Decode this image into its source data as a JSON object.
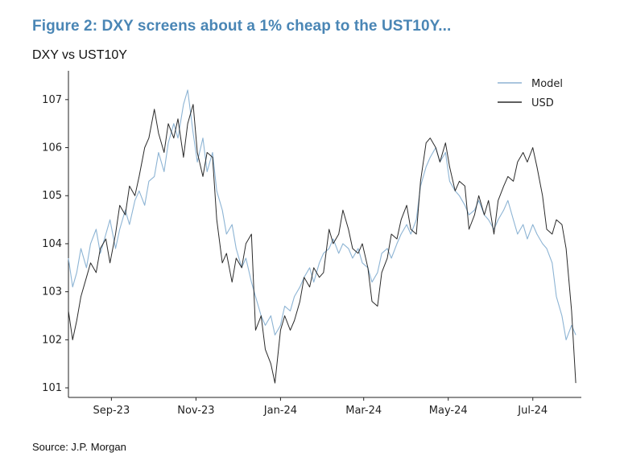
{
  "header": {
    "title": "Figure 2: DXY screens about a 1% cheap to the UST10Y...",
    "subtitle": "DXY vs UST10Y"
  },
  "footer": {
    "source": "Source: J.P. Morgan"
  },
  "colors": {
    "model": "#8db4d4",
    "usd": "#2a2a2a",
    "title": "#4a86b5"
  },
  "chart_data": {
    "type": "line",
    "title": "",
    "xlabel": "",
    "ylabel": "",
    "xlim": [
      "2023-08-01",
      "2024-08-05"
    ],
    "ylim": [
      100.8,
      107.6
    ],
    "yticks": [
      101,
      102,
      103,
      104,
      105,
      106,
      107
    ],
    "xticks": [
      {
        "date": "2023-09-01",
        "label": "Sep-23"
      },
      {
        "date": "2023-11-01",
        "label": "Nov-23"
      },
      {
        "date": "2024-01-01",
        "label": "Jan-24"
      },
      {
        "date": "2024-03-01",
        "label": "Mar-24"
      },
      {
        "date": "2024-05-01",
        "label": "May-24"
      },
      {
        "date": "2024-07-01",
        "label": "Jul-24"
      }
    ],
    "legend": "top-right",
    "grid": false,
    "series": [
      {
        "name": "Model",
        "points": [
          [
            "2023-08-01",
            103.7
          ],
          [
            "2023-08-04",
            103.1
          ],
          [
            "2023-08-07",
            103.4
          ],
          [
            "2023-08-10",
            103.9
          ],
          [
            "2023-08-14",
            103.5
          ],
          [
            "2023-08-17",
            104.0
          ],
          [
            "2023-08-21",
            104.3
          ],
          [
            "2023-08-24",
            103.8
          ],
          [
            "2023-08-28",
            104.2
          ],
          [
            "2023-08-31",
            104.5
          ],
          [
            "2023-09-04",
            103.9
          ],
          [
            "2023-09-07",
            104.3
          ],
          [
            "2023-09-11",
            104.7
          ],
          [
            "2023-09-14",
            104.4
          ],
          [
            "2023-09-18",
            104.9
          ],
          [
            "2023-09-21",
            105.1
          ],
          [
            "2023-09-25",
            104.8
          ],
          [
            "2023-09-28",
            105.3
          ],
          [
            "2023-10-02",
            105.4
          ],
          [
            "2023-10-05",
            105.9
          ],
          [
            "2023-10-09",
            105.5
          ],
          [
            "2023-10-12",
            106.1
          ],
          [
            "2023-10-16",
            106.5
          ],
          [
            "2023-10-19",
            106.2
          ],
          [
            "2023-10-23",
            106.9
          ],
          [
            "2023-10-26",
            107.2
          ],
          [
            "2023-10-30",
            106.3
          ],
          [
            "2023-11-02",
            105.7
          ],
          [
            "2023-11-06",
            106.2
          ],
          [
            "2023-11-09",
            105.5
          ],
          [
            "2023-11-13",
            105.9
          ],
          [
            "2023-11-16",
            105.1
          ],
          [
            "2023-11-20",
            104.7
          ],
          [
            "2023-11-23",
            104.2
          ],
          [
            "2023-11-27",
            104.4
          ],
          [
            "2023-11-30",
            103.9
          ],
          [
            "2023-12-04",
            103.5
          ],
          [
            "2023-12-07",
            103.7
          ],
          [
            "2023-12-11",
            103.2
          ],
          [
            "2023-12-14",
            102.9
          ],
          [
            "2023-12-18",
            102.5
          ],
          [
            "2023-12-21",
            102.3
          ],
          [
            "2023-12-25",
            102.5
          ],
          [
            "2023-12-28",
            102.1
          ],
          [
            "2024-01-01",
            102.3
          ],
          [
            "2024-01-04",
            102.7
          ],
          [
            "2024-01-08",
            102.6
          ],
          [
            "2024-01-11",
            102.9
          ],
          [
            "2024-01-15",
            103.1
          ],
          [
            "2024-01-18",
            103.3
          ],
          [
            "2024-01-22",
            103.5
          ],
          [
            "2024-01-25",
            103.2
          ],
          [
            "2024-01-29",
            103.6
          ],
          [
            "2024-02-01",
            103.8
          ],
          [
            "2024-02-05",
            103.9
          ],
          [
            "2024-02-08",
            104.1
          ],
          [
            "2024-02-12",
            103.8
          ],
          [
            "2024-02-15",
            104.0
          ],
          [
            "2024-02-19",
            103.9
          ],
          [
            "2024-02-22",
            103.7
          ],
          [
            "2024-02-26",
            103.9
          ],
          [
            "2024-02-29",
            103.6
          ],
          [
            "2024-03-04",
            103.5
          ],
          [
            "2024-03-07",
            103.2
          ],
          [
            "2024-03-11",
            103.4
          ],
          [
            "2024-03-14",
            103.8
          ],
          [
            "2024-03-18",
            103.9
          ],
          [
            "2024-03-21",
            103.7
          ],
          [
            "2024-03-25",
            104.0
          ],
          [
            "2024-03-28",
            104.2
          ],
          [
            "2024-04-01",
            104.4
          ],
          [
            "2024-04-04",
            104.2
          ],
          [
            "2024-04-08",
            104.5
          ],
          [
            "2024-04-11",
            105.2
          ],
          [
            "2024-04-15",
            105.6
          ],
          [
            "2024-04-18",
            105.8
          ],
          [
            "2024-04-22",
            106.0
          ],
          [
            "2024-04-25",
            105.7
          ],
          [
            "2024-04-29",
            105.9
          ],
          [
            "2024-05-02",
            105.3
          ],
          [
            "2024-05-06",
            105.1
          ],
          [
            "2024-05-09",
            105.0
          ],
          [
            "2024-05-13",
            104.8
          ],
          [
            "2024-05-16",
            104.6
          ],
          [
            "2024-05-20",
            104.7
          ],
          [
            "2024-05-23",
            104.9
          ],
          [
            "2024-05-27",
            104.6
          ],
          [
            "2024-05-30",
            104.5
          ],
          [
            "2024-06-03",
            104.3
          ],
          [
            "2024-06-06",
            104.5
          ],
          [
            "2024-06-10",
            104.7
          ],
          [
            "2024-06-13",
            104.9
          ],
          [
            "2024-06-17",
            104.5
          ],
          [
            "2024-06-20",
            104.2
          ],
          [
            "2024-06-24",
            104.4
          ],
          [
            "2024-06-27",
            104.1
          ],
          [
            "2024-07-01",
            104.4
          ],
          [
            "2024-07-04",
            104.2
          ],
          [
            "2024-07-08",
            104.0
          ],
          [
            "2024-07-11",
            103.9
          ],
          [
            "2024-07-15",
            103.6
          ],
          [
            "2024-07-18",
            102.9
          ],
          [
            "2024-07-22",
            102.5
          ],
          [
            "2024-07-25",
            102.0
          ],
          [
            "2024-07-29",
            102.3
          ],
          [
            "2024-08-01",
            102.1
          ]
        ]
      },
      {
        "name": "USD",
        "points": [
          [
            "2023-08-01",
            102.6
          ],
          [
            "2023-08-04",
            102.0
          ],
          [
            "2023-08-07",
            102.4
          ],
          [
            "2023-08-10",
            102.9
          ],
          [
            "2023-08-14",
            103.3
          ],
          [
            "2023-08-17",
            103.6
          ],
          [
            "2023-08-21",
            103.4
          ],
          [
            "2023-08-24",
            103.9
          ],
          [
            "2023-08-28",
            104.1
          ],
          [
            "2023-08-31",
            103.6
          ],
          [
            "2023-09-04",
            104.2
          ],
          [
            "2023-09-07",
            104.8
          ],
          [
            "2023-09-11",
            104.6
          ],
          [
            "2023-09-14",
            105.2
          ],
          [
            "2023-09-18",
            105.0
          ],
          [
            "2023-09-21",
            105.4
          ],
          [
            "2023-09-25",
            106.0
          ],
          [
            "2023-09-28",
            106.2
          ],
          [
            "2023-10-02",
            106.8
          ],
          [
            "2023-10-05",
            106.3
          ],
          [
            "2023-10-09",
            105.9
          ],
          [
            "2023-10-12",
            106.5
          ],
          [
            "2023-10-16",
            106.2
          ],
          [
            "2023-10-19",
            106.6
          ],
          [
            "2023-10-23",
            105.8
          ],
          [
            "2023-10-26",
            106.5
          ],
          [
            "2023-10-30",
            106.9
          ],
          [
            "2023-11-02",
            105.9
          ],
          [
            "2023-11-06",
            105.4
          ],
          [
            "2023-11-09",
            105.9
          ],
          [
            "2023-11-13",
            105.8
          ],
          [
            "2023-11-16",
            104.5
          ],
          [
            "2023-11-20",
            103.6
          ],
          [
            "2023-11-23",
            103.8
          ],
          [
            "2023-11-27",
            103.2
          ],
          [
            "2023-11-30",
            103.7
          ],
          [
            "2023-12-04",
            103.5
          ],
          [
            "2023-12-07",
            104.0
          ],
          [
            "2023-12-11",
            104.2
          ],
          [
            "2023-12-14",
            102.2
          ],
          [
            "2023-12-18",
            102.5
          ],
          [
            "2023-12-21",
            101.8
          ],
          [
            "2023-12-25",
            101.5
          ],
          [
            "2023-12-28",
            101.1
          ],
          [
            "2024-01-01",
            102.2
          ],
          [
            "2024-01-04",
            102.5
          ],
          [
            "2024-01-08",
            102.2
          ],
          [
            "2024-01-11",
            102.4
          ],
          [
            "2024-01-15",
            102.8
          ],
          [
            "2024-01-18",
            103.3
          ],
          [
            "2024-01-22",
            103.1
          ],
          [
            "2024-01-25",
            103.5
          ],
          [
            "2024-01-29",
            103.3
          ],
          [
            "2024-02-01",
            103.4
          ],
          [
            "2024-02-05",
            104.3
          ],
          [
            "2024-02-08",
            104.0
          ],
          [
            "2024-02-12",
            104.2
          ],
          [
            "2024-02-15",
            104.7
          ],
          [
            "2024-02-19",
            104.3
          ],
          [
            "2024-02-22",
            103.9
          ],
          [
            "2024-02-26",
            103.8
          ],
          [
            "2024-02-29",
            104.0
          ],
          [
            "2024-03-04",
            103.5
          ],
          [
            "2024-03-07",
            102.8
          ],
          [
            "2024-03-11",
            102.7
          ],
          [
            "2024-03-14",
            103.4
          ],
          [
            "2024-03-18",
            103.7
          ],
          [
            "2024-03-21",
            104.2
          ],
          [
            "2024-03-25",
            104.1
          ],
          [
            "2024-03-28",
            104.5
          ],
          [
            "2024-04-01",
            104.8
          ],
          [
            "2024-04-04",
            104.3
          ],
          [
            "2024-04-08",
            104.2
          ],
          [
            "2024-04-11",
            105.3
          ],
          [
            "2024-04-15",
            106.1
          ],
          [
            "2024-04-18",
            106.2
          ],
          [
            "2024-04-22",
            106.0
          ],
          [
            "2024-04-25",
            105.7
          ],
          [
            "2024-04-29",
            106.1
          ],
          [
            "2024-05-02",
            105.6
          ],
          [
            "2024-05-06",
            105.1
          ],
          [
            "2024-05-09",
            105.3
          ],
          [
            "2024-05-13",
            105.2
          ],
          [
            "2024-05-16",
            104.3
          ],
          [
            "2024-05-20",
            104.6
          ],
          [
            "2024-05-23",
            105.0
          ],
          [
            "2024-05-27",
            104.6
          ],
          [
            "2024-05-30",
            104.9
          ],
          [
            "2024-06-03",
            104.2
          ],
          [
            "2024-06-06",
            104.9
          ],
          [
            "2024-06-10",
            105.2
          ],
          [
            "2024-06-13",
            105.4
          ],
          [
            "2024-06-17",
            105.3
          ],
          [
            "2024-06-20",
            105.7
          ],
          [
            "2024-06-24",
            105.9
          ],
          [
            "2024-06-27",
            105.7
          ],
          [
            "2024-07-01",
            106.0
          ],
          [
            "2024-07-04",
            105.6
          ],
          [
            "2024-07-08",
            105.0
          ],
          [
            "2024-07-11",
            104.3
          ],
          [
            "2024-07-15",
            104.2
          ],
          [
            "2024-07-18",
            104.5
          ],
          [
            "2024-07-22",
            104.4
          ],
          [
            "2024-07-25",
            103.9
          ],
          [
            "2024-07-29",
            102.6
          ],
          [
            "2024-08-01",
            101.1
          ]
        ]
      }
    ]
  }
}
